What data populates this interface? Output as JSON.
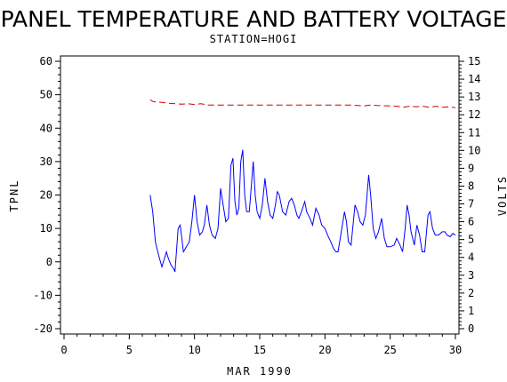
{
  "chart_data": {
    "type": "line",
    "title": "PANEL TEMPERATURE AND BATTERY VOLTAGE",
    "subtitle": "STATION=HOGI",
    "xlabel": "MAR 1990",
    "ylabel_left": "TPNL",
    "ylabel_right": "VOLTS",
    "xlim": [
      0,
      30
    ],
    "ylim_left": [
      -20,
      60
    ],
    "ylim_right": [
      0,
      15
    ],
    "x_ticks": [
      "0",
      "5",
      "10",
      "15",
      "20",
      "25",
      "30"
    ],
    "y_left_ticks": [
      "-20",
      "-10",
      "0",
      "10",
      "20",
      "30",
      "40",
      "50",
      "60"
    ],
    "y_right_ticks": [
      "0",
      "1",
      "2",
      "3",
      "4",
      "5",
      "6",
      "7",
      "8",
      "9",
      "10",
      "11",
      "12",
      "13",
      "14",
      "15"
    ],
    "grid": false,
    "series": [
      {
        "axis": "left",
        "color": "#0000ff",
        "style": "solid",
        "points": [
          [
            6.6,
            20
          ],
          [
            6.8,
            15
          ],
          [
            7.0,
            6
          ],
          [
            7.25,
            2
          ],
          [
            7.5,
            -1.5
          ],
          [
            7.7,
            1
          ],
          [
            7.85,
            3
          ],
          [
            8.0,
            1
          ],
          [
            8.2,
            -1
          ],
          [
            8.4,
            -2
          ],
          [
            8.5,
            -3
          ],
          [
            8.75,
            10
          ],
          [
            8.9,
            11
          ],
          [
            9.0,
            8
          ],
          [
            9.15,
            3
          ],
          [
            9.3,
            4
          ],
          [
            9.6,
            6
          ],
          [
            9.8,
            12
          ],
          [
            10.0,
            20
          ],
          [
            10.2,
            12
          ],
          [
            10.4,
            8
          ],
          [
            10.6,
            9
          ],
          [
            10.75,
            11
          ],
          [
            10.95,
            17
          ],
          [
            11.15,
            11
          ],
          [
            11.35,
            8
          ],
          [
            11.6,
            7
          ],
          [
            11.8,
            10
          ],
          [
            12.0,
            22
          ],
          [
            12.2,
            17
          ],
          [
            12.4,
            12
          ],
          [
            12.6,
            13
          ],
          [
            12.8,
            29
          ],
          [
            12.95,
            31
          ],
          [
            13.1,
            18
          ],
          [
            13.25,
            14
          ],
          [
            13.4,
            16
          ],
          [
            13.55,
            30
          ],
          [
            13.7,
            33.5
          ],
          [
            13.85,
            20
          ],
          [
            14.0,
            15
          ],
          [
            14.2,
            15
          ],
          [
            14.5,
            30
          ],
          [
            14.65,
            20
          ],
          [
            14.8,
            15
          ],
          [
            15.0,
            13
          ],
          [
            15.2,
            17
          ],
          [
            15.4,
            25
          ],
          [
            15.6,
            18
          ],
          [
            15.8,
            14
          ],
          [
            16.0,
            13
          ],
          [
            16.2,
            17
          ],
          [
            16.35,
            21
          ],
          [
            16.5,
            20
          ],
          [
            16.75,
            15
          ],
          [
            17.0,
            14
          ],
          [
            17.25,
            18
          ],
          [
            17.45,
            19
          ],
          [
            17.65,
            17
          ],
          [
            17.85,
            14
          ],
          [
            18.0,
            13
          ],
          [
            18.2,
            15
          ],
          [
            18.45,
            18
          ],
          [
            18.6,
            15
          ],
          [
            18.85,
            13
          ],
          [
            19.05,
            11
          ],
          [
            19.3,
            16
          ],
          [
            19.55,
            14
          ],
          [
            19.75,
            11
          ],
          [
            20.0,
            10
          ],
          [
            20.2,
            8
          ],
          [
            20.45,
            6
          ],
          [
            20.65,
            4
          ],
          [
            20.85,
            3
          ],
          [
            21.0,
            3
          ],
          [
            21.25,
            9
          ],
          [
            21.5,
            15
          ],
          [
            21.65,
            12
          ],
          [
            21.8,
            6
          ],
          [
            22.0,
            5
          ],
          [
            22.3,
            17
          ],
          [
            22.5,
            15
          ],
          [
            22.7,
            12
          ],
          [
            22.9,
            11
          ],
          [
            23.1,
            14
          ],
          [
            23.35,
            26
          ],
          [
            23.5,
            20
          ],
          [
            23.7,
            10
          ],
          [
            23.9,
            7
          ],
          [
            24.1,
            9
          ],
          [
            24.35,
            13
          ],
          [
            24.55,
            7
          ],
          [
            24.75,
            4.5
          ],
          [
            25.0,
            4.5
          ],
          [
            25.3,
            5
          ],
          [
            25.5,
            7
          ],
          [
            25.75,
            5
          ],
          [
            25.95,
            3
          ],
          [
            26.15,
            10
          ],
          [
            26.3,
            17
          ],
          [
            26.45,
            14
          ],
          [
            26.6,
            9
          ],
          [
            26.85,
            5
          ],
          [
            27.05,
            11
          ],
          [
            27.25,
            8
          ],
          [
            27.45,
            3
          ],
          [
            27.65,
            3
          ],
          [
            27.9,
            14
          ],
          [
            28.05,
            15
          ],
          [
            28.25,
            10
          ],
          [
            28.45,
            8
          ],
          [
            28.7,
            8
          ],
          [
            29.0,
            9
          ],
          [
            29.2,
            9
          ],
          [
            29.35,
            8
          ],
          [
            29.6,
            7.5
          ],
          [
            29.8,
            8.5
          ],
          [
            30.0,
            8
          ]
        ]
      },
      {
        "axis": "right",
        "color": "#cc0000",
        "style": "dashed",
        "points": [
          [
            6.6,
            12.85
          ],
          [
            6.8,
            12.75
          ],
          [
            7.0,
            12.72
          ],
          [
            7.5,
            12.7
          ],
          [
            8.0,
            12.65
          ],
          [
            8.5,
            12.62
          ],
          [
            9.0,
            12.6
          ],
          [
            9.5,
            12.62
          ],
          [
            10.0,
            12.58
          ],
          [
            10.5,
            12.62
          ],
          [
            11.0,
            12.55
          ],
          [
            12.0,
            12.55
          ],
          [
            13.0,
            12.55
          ],
          [
            14.0,
            12.55
          ],
          [
            15.0,
            12.55
          ],
          [
            16.0,
            12.55
          ],
          [
            17.0,
            12.55
          ],
          [
            18.0,
            12.55
          ],
          [
            19.0,
            12.55
          ],
          [
            20.0,
            12.55
          ],
          [
            21.0,
            12.55
          ],
          [
            22.0,
            12.55
          ],
          [
            23.0,
            12.5
          ],
          [
            23.5,
            12.55
          ],
          [
            24.0,
            12.52
          ],
          [
            25.0,
            12.5
          ],
          [
            25.5,
            12.48
          ],
          [
            26.0,
            12.42
          ],
          [
            26.5,
            12.48
          ],
          [
            27.0,
            12.45
          ],
          [
            27.5,
            12.48
          ],
          [
            28.0,
            12.42
          ],
          [
            28.5,
            12.48
          ],
          [
            29.0,
            12.42
          ],
          [
            29.5,
            12.45
          ],
          [
            30.0,
            12.4
          ]
        ]
      }
    ]
  }
}
